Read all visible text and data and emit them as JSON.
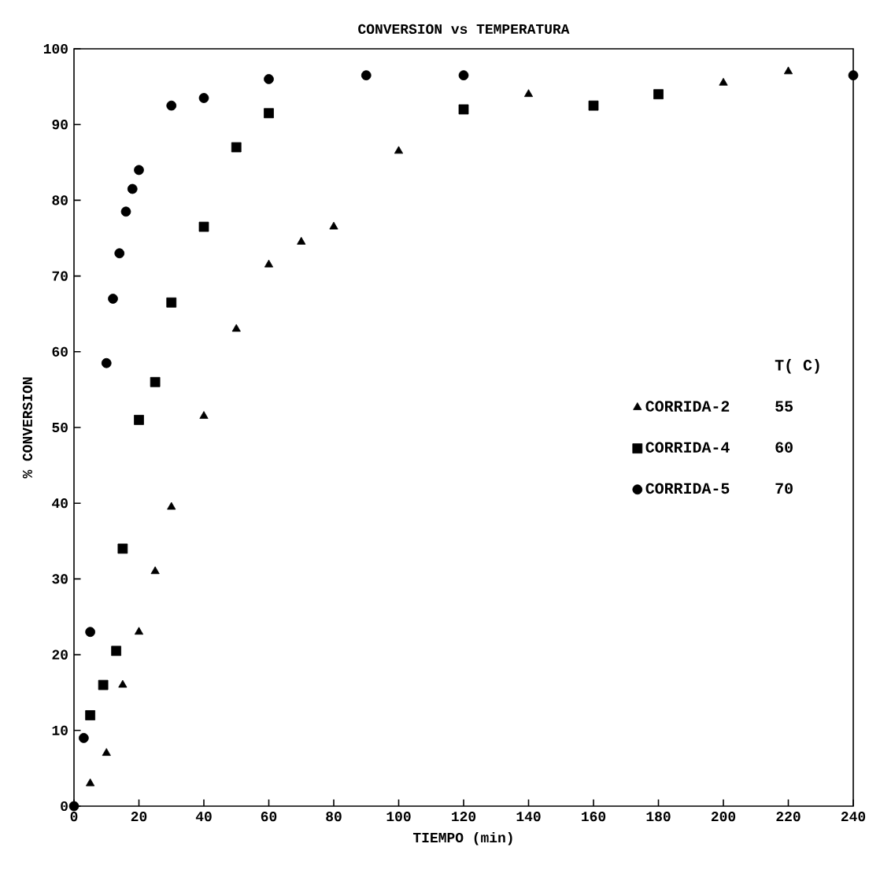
{
  "chart_data": {
    "type": "scatter",
    "title": "CONVERSION vs TEMPERATURA",
    "xlabel": "TIEMPO (min)",
    "ylabel": "% CONVERSION",
    "xlim": [
      0,
      240
    ],
    "ylim": [
      0,
      100
    ],
    "xticks": [
      0,
      20,
      40,
      60,
      80,
      100,
      120,
      140,
      160,
      180,
      200,
      220,
      240
    ],
    "yticks": [
      0,
      10,
      20,
      30,
      40,
      50,
      60,
      70,
      80,
      90,
      100
    ],
    "grid": false,
    "legend": "right",
    "legend_title": "T( C)",
    "series": [
      {
        "name": "CORRIDA-2",
        "color": "#000000",
        "marker": "triangle",
        "x": [
          5,
          10,
          15,
          20,
          25,
          30,
          40,
          50,
          60,
          70,
          80,
          100,
          140,
          200,
          220
        ],
        "values": [
          3,
          7,
          16,
          23,
          31,
          39.5,
          51.5,
          63,
          71.5,
          74.5,
          76.5,
          86.5,
          94,
          95.5,
          97
        ]
      },
      {
        "name": "CORRIDA-4",
        "color": "#000000",
        "marker": "square",
        "x": [
          5,
          9,
          13,
          15,
          20,
          25,
          30,
          40,
          50,
          60,
          120,
          160,
          180
        ],
        "values": [
          12,
          16,
          20.5,
          34,
          51,
          56,
          66.5,
          76.5,
          87,
          91.5,
          92,
          92.5,
          94
        ]
      },
      {
        "name": "CORRIDA-5",
        "color": "#000000",
        "marker": "circle",
        "x": [
          0,
          3,
          5,
          10,
          12,
          14,
          16,
          18,
          20,
          30,
          40,
          60,
          90,
          120,
          240
        ],
        "values": [
          0,
          9,
          23,
          58.5,
          67,
          73,
          78.5,
          81.5,
          84,
          92.5,
          93.5,
          96,
          96.5,
          96.5,
          96.5
        ]
      }
    ],
    "annotations": [
      "55",
      "60",
      "70"
    ]
  }
}
